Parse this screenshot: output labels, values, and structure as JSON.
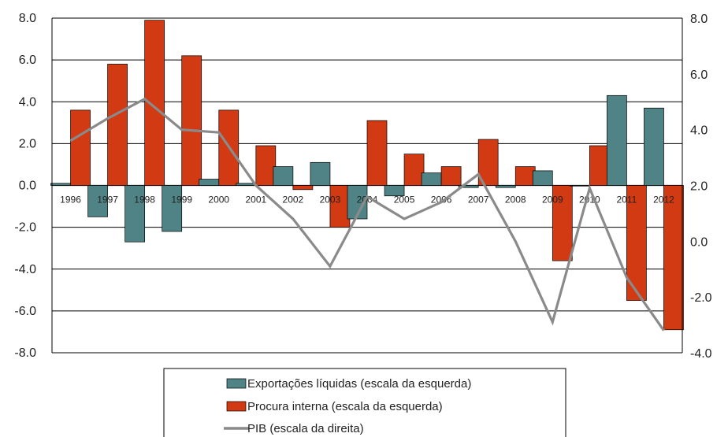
{
  "chart_data": {
    "type": "bar",
    "categories": [
      "1996",
      "1997",
      "1998",
      "1999",
      "2000",
      "2001",
      "2002",
      "2003",
      "2004",
      "2005",
      "2006",
      "2007",
      "2008",
      "2009",
      "2010",
      "2011",
      "2012"
    ],
    "series": [
      {
        "name": "Exportações líquidas (escala da esquerda)",
        "type": "bar",
        "axis": "left",
        "color": "#4f8385",
        "values": [
          0.1,
          -1.5,
          -2.7,
          -2.2,
          0.3,
          0.1,
          0.9,
          1.1,
          -1.6,
          -0.5,
          0.6,
          -0.1,
          -0.1,
          0.7,
          0.0,
          4.3,
          3.7
        ]
      },
      {
        "name": "Procura interna (escala da esquerda)",
        "type": "bar",
        "axis": "left",
        "color": "#d13a12",
        "values": [
          3.6,
          5.8,
          7.9,
          6.2,
          3.6,
          1.9,
          -0.2,
          -2.0,
          3.1,
          1.5,
          0.9,
          2.2,
          0.9,
          -3.6,
          1.9,
          -5.5,
          -6.9
        ]
      },
      {
        "name": "PIB (escala da direita)",
        "type": "line",
        "axis": "right",
        "color": "#8a8a8a",
        "values": [
          3.6,
          4.4,
          5.1,
          4.0,
          3.9,
          2.0,
          0.8,
          -0.9,
          1.6,
          0.8,
          1.4,
          2.4,
          0.0,
          -2.9,
          1.9,
          -1.3,
          -3.2
        ]
      }
    ],
    "left_axis": {
      "min": -8,
      "max": 8,
      "ticks": [
        8,
        6,
        4,
        2,
        0,
        -2,
        -4,
        -6,
        -8
      ],
      "tick_labels": [
        "8.0",
        "6.0",
        "4.0",
        "2.0",
        "0.0",
        "-2.0",
        "-4.0",
        "-6.0",
        "-8.0"
      ]
    },
    "right_axis": {
      "min": -4,
      "max": 8,
      "ticks": [
        8,
        6,
        4,
        2,
        0,
        -2,
        -4
      ],
      "tick_labels": [
        "8.0",
        "6.0",
        "4.0",
        "2.0",
        "0.0",
        "-2.0",
        "-4.0"
      ]
    },
    "grid": true,
    "legend_position": "bottom",
    "title": "",
    "xlabel": "",
    "ylabel": ""
  }
}
